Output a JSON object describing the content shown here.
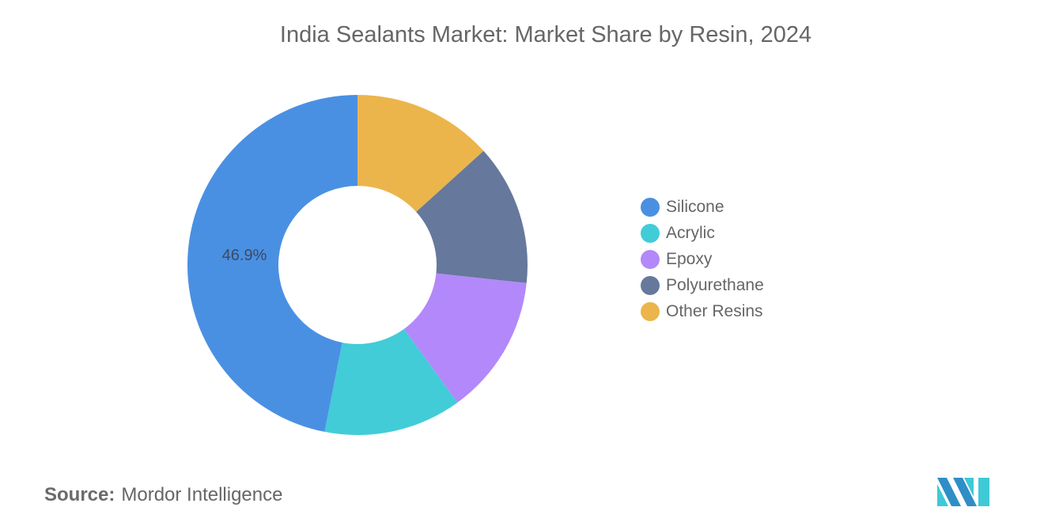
{
  "title": "India Sealants Market: Market Share by Resin, 2024",
  "source": {
    "key": "Source:",
    "value": "Mordor Intelligence"
  },
  "logo": {
    "icon": "mordor-intelligence-logo-icon",
    "colors": [
      "#2f8ec6",
      "#3ec9d6"
    ]
  },
  "legend": {
    "items": [
      {
        "label": "Silicone",
        "color": "#4a90e2"
      },
      {
        "label": "Acrylic",
        "color": "#41ccd8"
      },
      {
        "label": "Epoxy",
        "color": "#b388fa"
      },
      {
        "label": "Polyurethane",
        "color": "#66789b"
      },
      {
        "label": "Other Resins",
        "color": "#ebb54c"
      }
    ]
  },
  "chart_data": {
    "type": "pie",
    "subtype": "donut",
    "title": "India Sealants Market: Market Share by Resin, 2024",
    "categories": [
      "Silicone",
      "Acrylic",
      "Epoxy",
      "Polyurethane",
      "Other Resins"
    ],
    "values": [
      46.9,
      13.1,
      13.3,
      13.4,
      13.3
    ],
    "unit": "%",
    "data_labels": [
      {
        "category": "Silicone",
        "text": "46.9%"
      }
    ],
    "colors": [
      "#4a90e2",
      "#41ccd8",
      "#b388fa",
      "#66789b",
      "#ebb54c"
    ],
    "legend_position": "right",
    "start_angle": "top, drawing counter-clockwise from Silicone",
    "clockwise_order_from_top": [
      "Other Resins",
      "Polyurethane",
      "Epoxy",
      "Acrylic",
      "Silicone"
    ]
  }
}
